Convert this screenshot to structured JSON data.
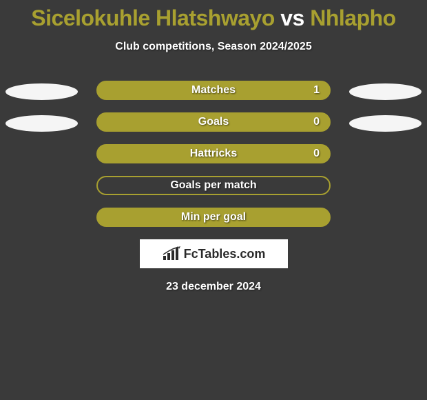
{
  "title": {
    "player1": "Sicelokuhle Hlatshwayo",
    "vs": "vs",
    "player2": "Nhlapho",
    "player1_color": "#a8a030",
    "vs_color": "#ffffff",
    "player2_color": "#a8a030"
  },
  "subtitle": "Club competitions, Season 2024/2025",
  "stats": [
    {
      "label": "Matches",
      "value": "1",
      "filled": true,
      "show_left_oval": true,
      "show_right_oval": true,
      "fill_color": "#a8a030",
      "border_color": "#a8a030"
    },
    {
      "label": "Goals",
      "value": "0",
      "filled": true,
      "show_left_oval": true,
      "show_right_oval": true,
      "fill_color": "#a8a030",
      "border_color": "#a8a030"
    },
    {
      "label": "Hattricks",
      "value": "0",
      "filled": true,
      "show_left_oval": false,
      "show_right_oval": false,
      "fill_color": "#a8a030",
      "border_color": "#a8a030"
    },
    {
      "label": "Goals per match",
      "value": "",
      "filled": false,
      "show_left_oval": false,
      "show_right_oval": false,
      "fill_color": "transparent",
      "border_color": "#a8a030"
    },
    {
      "label": "Min per goal",
      "value": "",
      "filled": true,
      "show_left_oval": false,
      "show_right_oval": false,
      "fill_color": "#a8a030",
      "border_color": "#a8a030"
    }
  ],
  "logo": {
    "text": "FcTables.com"
  },
  "date": "23 december 2024",
  "colors": {
    "background": "#3a3a3a",
    "oval": "#f5f5f5",
    "accent": "#a8a030",
    "text": "#ffffff"
  }
}
